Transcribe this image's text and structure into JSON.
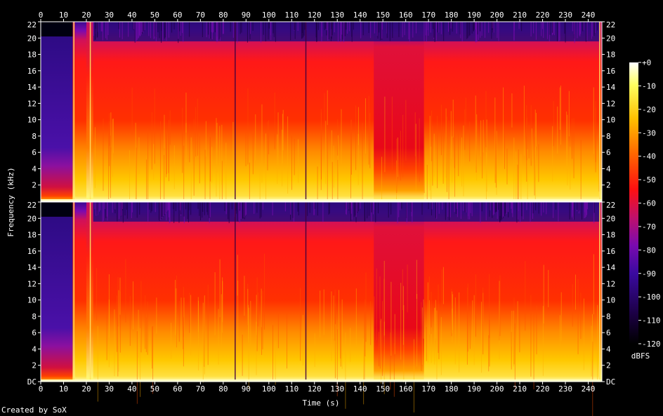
{
  "credit": "Created by SoX",
  "colors": {
    "background": "#000000",
    "text": "#ffffff",
    "axis": "#ffffff"
  },
  "chart_data": {
    "type": "heatmap",
    "subtype": "spectrogram",
    "channels": 2,
    "xlabel": "Time (s)",
    "ylabel": "Frequency (kHz)",
    "xlim": [
      0,
      246
    ],
    "ylim": [
      0,
      22
    ],
    "x_ticks": [
      "0",
      "10",
      "20",
      "30",
      "40",
      "50",
      "60",
      "70",
      "80",
      "90",
      "100",
      "110",
      "120",
      "130",
      "140",
      "150",
      "160",
      "170",
      "180",
      "190",
      "200",
      "210",
      "220",
      "230",
      "240"
    ],
    "y_ticks_top": [
      "22",
      "20",
      "18",
      "16",
      "14",
      "12",
      "10",
      "8",
      "6",
      "4",
      "2"
    ],
    "y_ticks_bottom": [
      "22",
      "20",
      "18",
      "16",
      "14",
      "12",
      "10",
      "8",
      "6",
      "4",
      "2",
      "DC"
    ],
    "colorbar": {
      "label": "dBFS",
      "range": [
        -120,
        0
      ],
      "ticks": [
        "+0",
        "-10",
        "-20",
        "-30",
        "-40",
        "-50",
        "-60",
        "-70",
        "-80",
        "-90",
        "-100",
        "-110",
        "-120"
      ]
    },
    "segments_seconds": [
      {
        "from": 0,
        "to": 14,
        "level": "quiet intro, energy below ~6 kHz"
      },
      {
        "from": 14,
        "to": 15,
        "level": "transient burst"
      },
      {
        "from": 20,
        "to": 23,
        "level": "transient bursts"
      },
      {
        "from": 23,
        "to": 245,
        "level": "full-band music, rolloff ~19.5 kHz"
      },
      {
        "from": 146,
        "to": 168,
        "level": "reduced high energy, mid band dip"
      },
      {
        "from": 245,
        "to": 246,
        "level": "end burst"
      }
    ],
    "grid": false,
    "legend": "right"
  }
}
